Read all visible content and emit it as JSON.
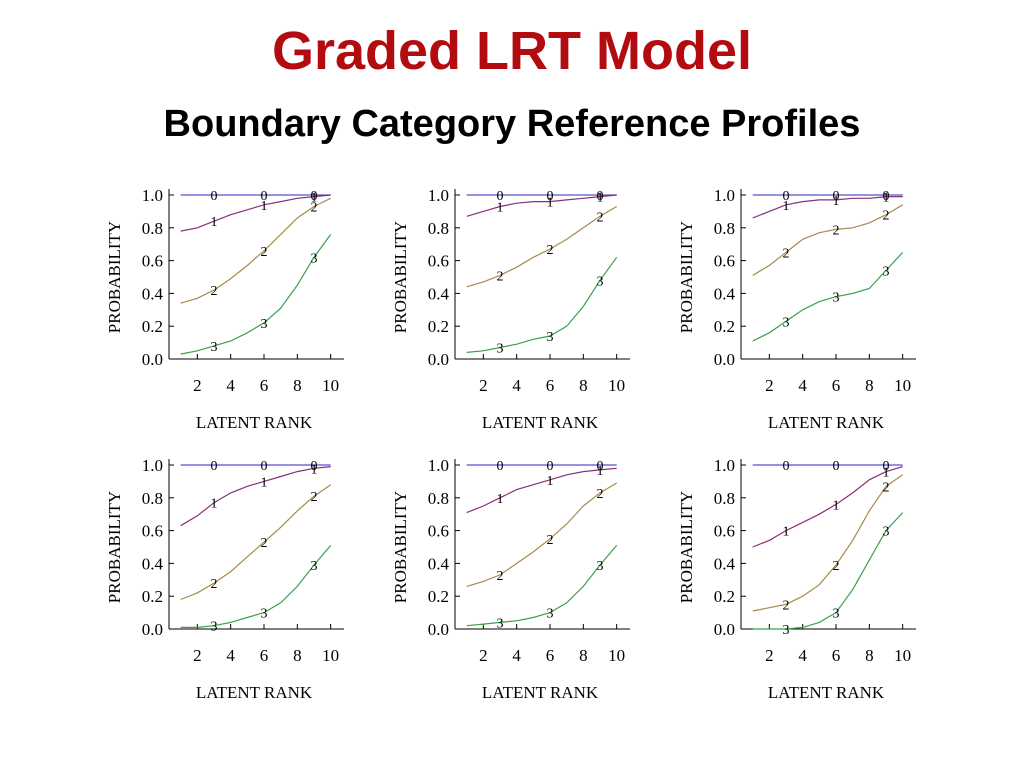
{
  "header": {
    "title": "Graded LRT Model",
    "subtitle": "Boundary Category Reference Profiles"
  },
  "colors": {
    "title": "#b30c10",
    "axis": "#000000",
    "series": [
      "#5a4fd0",
      "#8a2e7a",
      "#a88a4c",
      "#3aa04c"
    ]
  },
  "chart_data": [
    {
      "type": "line",
      "xlabel": "LATENT RANK",
      "ylabel": "PROBABILITY",
      "xlim": [
        0,
        10.8
      ],
      "ylim": [
        0,
        1.0
      ],
      "xticks": [
        2,
        4,
        6,
        8,
        10
      ],
      "yticks": [
        "0.0",
        "0.2",
        "0.4",
        "0.6",
        "0.8",
        "1.0"
      ],
      "x": [
        1,
        2,
        3,
        4,
        5,
        6,
        7,
        8,
        9,
        10
      ],
      "series": [
        {
          "label": "0",
          "values": [
            1.0,
            1.0,
            1.0,
            1.0,
            1.0,
            1.0,
            1.0,
            1.0,
            1.0,
            1.0
          ]
        },
        {
          "label": "1",
          "values": [
            0.78,
            0.8,
            0.84,
            0.88,
            0.91,
            0.94,
            0.96,
            0.98,
            0.99,
            1.0
          ]
        },
        {
          "label": "2",
          "values": [
            0.34,
            0.37,
            0.42,
            0.49,
            0.57,
            0.66,
            0.76,
            0.86,
            0.93,
            0.98
          ]
        },
        {
          "label": "3",
          "values": [
            0.03,
            0.05,
            0.08,
            0.11,
            0.16,
            0.22,
            0.31,
            0.45,
            0.62,
            0.76
          ]
        }
      ]
    },
    {
      "type": "line",
      "xlabel": "LATENT RANK",
      "ylabel": "PROBABILITY",
      "xlim": [
        0,
        10.8
      ],
      "ylim": [
        0,
        1.0
      ],
      "xticks": [
        2,
        4,
        6,
        8,
        10
      ],
      "yticks": [
        "0.0",
        "0.2",
        "0.4",
        "0.6",
        "0.8",
        "1.0"
      ],
      "x": [
        1,
        2,
        3,
        4,
        5,
        6,
        7,
        8,
        9,
        10
      ],
      "series": [
        {
          "label": "0",
          "values": [
            1.0,
            1.0,
            1.0,
            1.0,
            1.0,
            1.0,
            1.0,
            1.0,
            1.0,
            1.0
          ]
        },
        {
          "label": "1",
          "values": [
            0.87,
            0.9,
            0.93,
            0.95,
            0.96,
            0.96,
            0.97,
            0.98,
            0.99,
            1.0
          ]
        },
        {
          "label": "2",
          "values": [
            0.44,
            0.47,
            0.51,
            0.56,
            0.62,
            0.67,
            0.73,
            0.8,
            0.87,
            0.93
          ]
        },
        {
          "label": "3",
          "values": [
            0.04,
            0.05,
            0.07,
            0.09,
            0.12,
            0.14,
            0.2,
            0.32,
            0.48,
            0.62
          ]
        }
      ]
    },
    {
      "type": "line",
      "xlabel": "LATENT RANK",
      "ylabel": "PROBABILITY",
      "xlim": [
        0,
        10.8
      ],
      "ylim": [
        0,
        1.0
      ],
      "xticks": [
        2,
        4,
        6,
        8,
        10
      ],
      "yticks": [
        "0.0",
        "0.2",
        "0.4",
        "0.6",
        "0.8",
        "1.0"
      ],
      "x": [
        1,
        2,
        3,
        4,
        5,
        6,
        7,
        8,
        9,
        10
      ],
      "series": [
        {
          "label": "0",
          "values": [
            1.0,
            1.0,
            1.0,
            1.0,
            1.0,
            1.0,
            1.0,
            1.0,
            1.0,
            1.0
          ]
        },
        {
          "label": "1",
          "values": [
            0.86,
            0.9,
            0.94,
            0.96,
            0.97,
            0.97,
            0.98,
            0.98,
            0.99,
            0.99
          ]
        },
        {
          "label": "2",
          "values": [
            0.51,
            0.57,
            0.65,
            0.73,
            0.77,
            0.79,
            0.8,
            0.83,
            0.88,
            0.94
          ]
        },
        {
          "label": "3",
          "values": [
            0.11,
            0.16,
            0.23,
            0.3,
            0.35,
            0.38,
            0.4,
            0.43,
            0.54,
            0.65
          ]
        }
      ]
    },
    {
      "type": "line",
      "xlabel": "LATENT RANK",
      "ylabel": "PROBABILITY",
      "xlim": [
        0,
        10.8
      ],
      "ylim": [
        0,
        1.0
      ],
      "xticks": [
        2,
        4,
        6,
        8,
        10
      ],
      "yticks": [
        "0.0",
        "0.2",
        "0.4",
        "0.6",
        "0.8",
        "1.0"
      ],
      "x": [
        1,
        2,
        3,
        4,
        5,
        6,
        7,
        8,
        9,
        10
      ],
      "series": [
        {
          "label": "0",
          "values": [
            1.0,
            1.0,
            1.0,
            1.0,
            1.0,
            1.0,
            1.0,
            1.0,
            1.0,
            1.0
          ]
        },
        {
          "label": "1",
          "values": [
            0.63,
            0.69,
            0.77,
            0.83,
            0.87,
            0.9,
            0.93,
            0.96,
            0.98,
            0.99
          ]
        },
        {
          "label": "2",
          "values": [
            0.18,
            0.22,
            0.28,
            0.35,
            0.44,
            0.53,
            0.62,
            0.72,
            0.81,
            0.88
          ]
        },
        {
          "label": "3",
          "values": [
            0.01,
            0.01,
            0.02,
            0.04,
            0.07,
            0.1,
            0.16,
            0.26,
            0.39,
            0.51
          ]
        }
      ]
    },
    {
      "type": "line",
      "xlabel": "LATENT RANK",
      "ylabel": "PROBABILITY",
      "xlim": [
        0,
        10.8
      ],
      "ylim": [
        0,
        1.0
      ],
      "xticks": [
        2,
        4,
        6,
        8,
        10
      ],
      "yticks": [
        "0.0",
        "0.2",
        "0.4",
        "0.6",
        "0.8",
        "1.0"
      ],
      "x": [
        1,
        2,
        3,
        4,
        5,
        6,
        7,
        8,
        9,
        10
      ],
      "series": [
        {
          "label": "0",
          "values": [
            1.0,
            1.0,
            1.0,
            1.0,
            1.0,
            1.0,
            1.0,
            1.0,
            1.0,
            1.0
          ]
        },
        {
          "label": "1",
          "values": [
            0.71,
            0.75,
            0.8,
            0.85,
            0.88,
            0.91,
            0.94,
            0.96,
            0.97,
            0.98
          ]
        },
        {
          "label": "2",
          "values": [
            0.26,
            0.29,
            0.33,
            0.4,
            0.47,
            0.55,
            0.64,
            0.75,
            0.83,
            0.89
          ]
        },
        {
          "label": "3",
          "values": [
            0.02,
            0.03,
            0.04,
            0.05,
            0.07,
            0.1,
            0.16,
            0.26,
            0.39,
            0.51
          ]
        }
      ]
    },
    {
      "type": "line",
      "xlabel": "LATENT RANK",
      "ylabel": "PROBABILITY",
      "xlim": [
        0,
        10.8
      ],
      "ylim": [
        0,
        1.0
      ],
      "xticks": [
        2,
        4,
        6,
        8,
        10
      ],
      "yticks": [
        "0.0",
        "0.2",
        "0.4",
        "0.6",
        "0.8",
        "1.0"
      ],
      "x": [
        1,
        2,
        3,
        4,
        5,
        6,
        7,
        8,
        9,
        10
      ],
      "series": [
        {
          "label": "0",
          "values": [
            1.0,
            1.0,
            1.0,
            1.0,
            1.0,
            1.0,
            1.0,
            1.0,
            1.0,
            1.0
          ]
        },
        {
          "label": "1",
          "values": [
            0.5,
            0.54,
            0.6,
            0.65,
            0.7,
            0.76,
            0.83,
            0.91,
            0.96,
            0.99
          ]
        },
        {
          "label": "2",
          "values": [
            0.11,
            0.13,
            0.15,
            0.2,
            0.27,
            0.39,
            0.54,
            0.72,
            0.87,
            0.94
          ]
        },
        {
          "label": "3",
          "values": [
            0.0,
            0.0,
            0.0,
            0.01,
            0.04,
            0.1,
            0.24,
            0.42,
            0.6,
            0.71
          ]
        }
      ]
    }
  ]
}
